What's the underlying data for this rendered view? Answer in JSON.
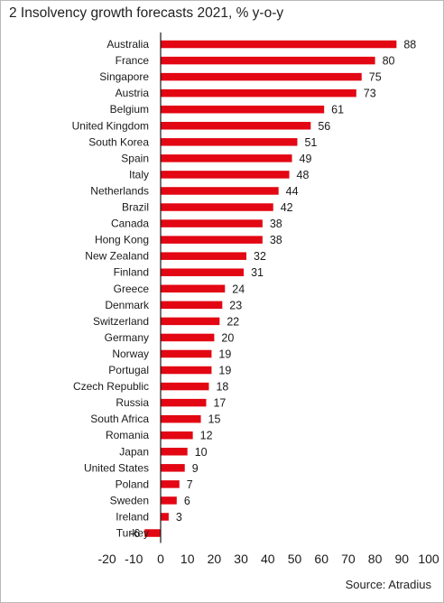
{
  "chart_data": {
    "type": "bar",
    "orientation": "horizontal",
    "title": "2 Insolvency growth forecasts 2021, % y-o-y",
    "source": "Source: Atradius",
    "categories": [
      "Australia",
      "France",
      "Singapore",
      "Austria",
      "Belgium",
      "United Kingdom",
      "South Korea",
      "Spain",
      "Italy",
      "Netherlands",
      "Brazil",
      "Canada",
      "Hong Kong",
      "New Zealand",
      "Finland",
      "Greece",
      "Denmark",
      "Switzerland",
      "Germany",
      "Norway",
      "Portugal",
      "Czech Republic",
      "Russia",
      "South Africa",
      "Romania",
      "Japan",
      "United States",
      "Poland",
      "Sweden",
      "Ireland",
      "Turkey"
    ],
    "values": [
      88,
      80,
      75,
      73,
      61,
      56,
      51,
      49,
      48,
      44,
      42,
      38,
      38,
      32,
      31,
      24,
      23,
      22,
      20,
      19,
      19,
      18,
      17,
      15,
      12,
      10,
      9,
      7,
      6,
      3,
      -6
    ],
    "xlim": [
      -20,
      100
    ],
    "xticks": [
      -20,
      -10,
      0,
      10,
      20,
      30,
      40,
      50,
      60,
      70,
      80,
      90,
      100
    ],
    "bar_color": "#e30613",
    "grid": false
  }
}
